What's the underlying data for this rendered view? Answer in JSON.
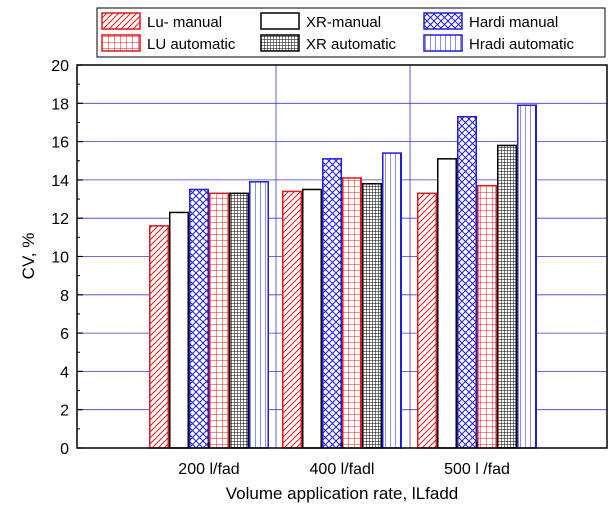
{
  "chart_data": {
    "type": "bar",
    "xlabel": "Volume application rate, lLfadd",
    "ylabel": "CV, %",
    "ylim": [
      0,
      20
    ],
    "yticks": [
      0,
      2,
      4,
      6,
      8,
      10,
      12,
      14,
      16,
      18,
      20
    ],
    "grid": true,
    "legend_position": "top",
    "categories": [
      "200 l/fad",
      "400 l/fadl",
      "500 l /fad"
    ],
    "series": [
      {
        "name": "Lu- manual",
        "values": [
          11.6,
          13.4,
          13.3
        ],
        "color": "#e0191b",
        "pattern": "diagonal"
      },
      {
        "name": "XR-manual",
        "values": [
          12.3,
          13.5,
          15.1
        ],
        "color": "#000000",
        "pattern": "none"
      },
      {
        "name": "Hardi manual",
        "values": [
          13.5,
          15.1,
          17.3
        ],
        "color": "#1f1fd6",
        "pattern": "crosshatch"
      },
      {
        "name": "LU automatic",
        "values": [
          13.3,
          14.1,
          13.7
        ],
        "color": "#e0191b",
        "pattern": "grid"
      },
      {
        "name": "XR automatic",
        "values": [
          13.3,
          13.8,
          15.8
        ],
        "color": "#000000",
        "pattern": "dense-grid"
      },
      {
        "name": "Hradi automatic",
        "values": [
          13.9,
          15.4,
          17.9
        ],
        "color": "#1f1fd6",
        "pattern": "vertical"
      }
    ]
  }
}
